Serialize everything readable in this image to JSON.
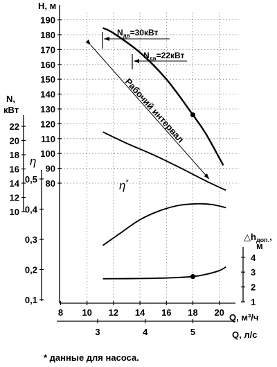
{
  "chart_data": {
    "type": "line",
    "axes": {
      "q_m3h": {
        "label": "Q, м³/ч",
        "range": [
          6.3,
          20.5
        ],
        "ticks": [
          "8",
          "10",
          "12",
          "14",
          "16",
          "18",
          "20"
        ]
      },
      "q_ls": {
        "label": "Q, л/с",
        "ticks": [
          "3",
          "4",
          "5"
        ]
      },
      "head": {
        "label": "H, м",
        "range": [
          80,
          190
        ],
        "ticks": [
          "80",
          "90",
          "100",
          "110",
          "120",
          "130",
          "140",
          "150",
          "160",
          "170",
          "180",
          "190"
        ]
      },
      "power": {
        "label": "N, кВт",
        "range": [
          10,
          22
        ],
        "ticks": [
          "10",
          "12",
          "14",
          "16",
          "18",
          "20",
          "22"
        ]
      },
      "eff": {
        "label": "η",
        "range": [
          0.1,
          0.5
        ],
        "ticks": [
          "0,1",
          "0,2",
          "0,3",
          "0,4",
          "0,5"
        ]
      },
      "npsh": {
        "label": "△hдоп., м",
        "range": [
          1,
          4
        ],
        "ticks": [
          "1",
          "2",
          "3",
          "4"
        ]
      }
    },
    "series": [
      {
        "name": "H, м",
        "axis": "head",
        "points": [
          [
            11.2,
            184.5
          ],
          [
            12,
            181
          ],
          [
            14,
            168
          ],
          [
            16,
            150
          ],
          [
            18,
            126
          ],
          [
            19,
            113
          ],
          [
            20.3,
            92
          ]
        ],
        "marker": [
          18,
          126
        ]
      },
      {
        "name": "N, кВт",
        "axis": "power",
        "points": [
          [
            11.2,
            21.2
          ],
          [
            13,
            19.6
          ],
          [
            15,
            18
          ],
          [
            17,
            16.2
          ],
          [
            19,
            14.3
          ],
          [
            20.5,
            13
          ]
        ]
      },
      {
        "name": "η *",
        "axis": "eff",
        "points": [
          [
            11.2,
            0.28
          ],
          [
            12.5,
            0.32
          ],
          [
            14,
            0.365
          ],
          [
            15.5,
            0.395
          ],
          [
            17,
            0.413
          ],
          [
            18.5,
            0.418
          ],
          [
            19.5,
            0.415
          ],
          [
            20.5,
            0.405
          ]
        ]
      },
      {
        "name": "△hдоп., м",
        "axis": "npsh",
        "points": [
          [
            11.2,
            2.55
          ],
          [
            13,
            2.56
          ],
          [
            15,
            2.58
          ],
          [
            16.5,
            2.62
          ],
          [
            18,
            2.7
          ],
          [
            19,
            2.85
          ],
          [
            20,
            3.1
          ],
          [
            20.5,
            3.35
          ]
        ],
        "marker": [
          18,
          2.7
        ]
      }
    ],
    "annotations": {
      "operating_range": "Рабочий интервал",
      "power_30": "Nдв=30кВт",
      "power_22": "Nдв=22кВт",
      "footnote": "* данные для насоса."
    },
    "grid": true
  }
}
